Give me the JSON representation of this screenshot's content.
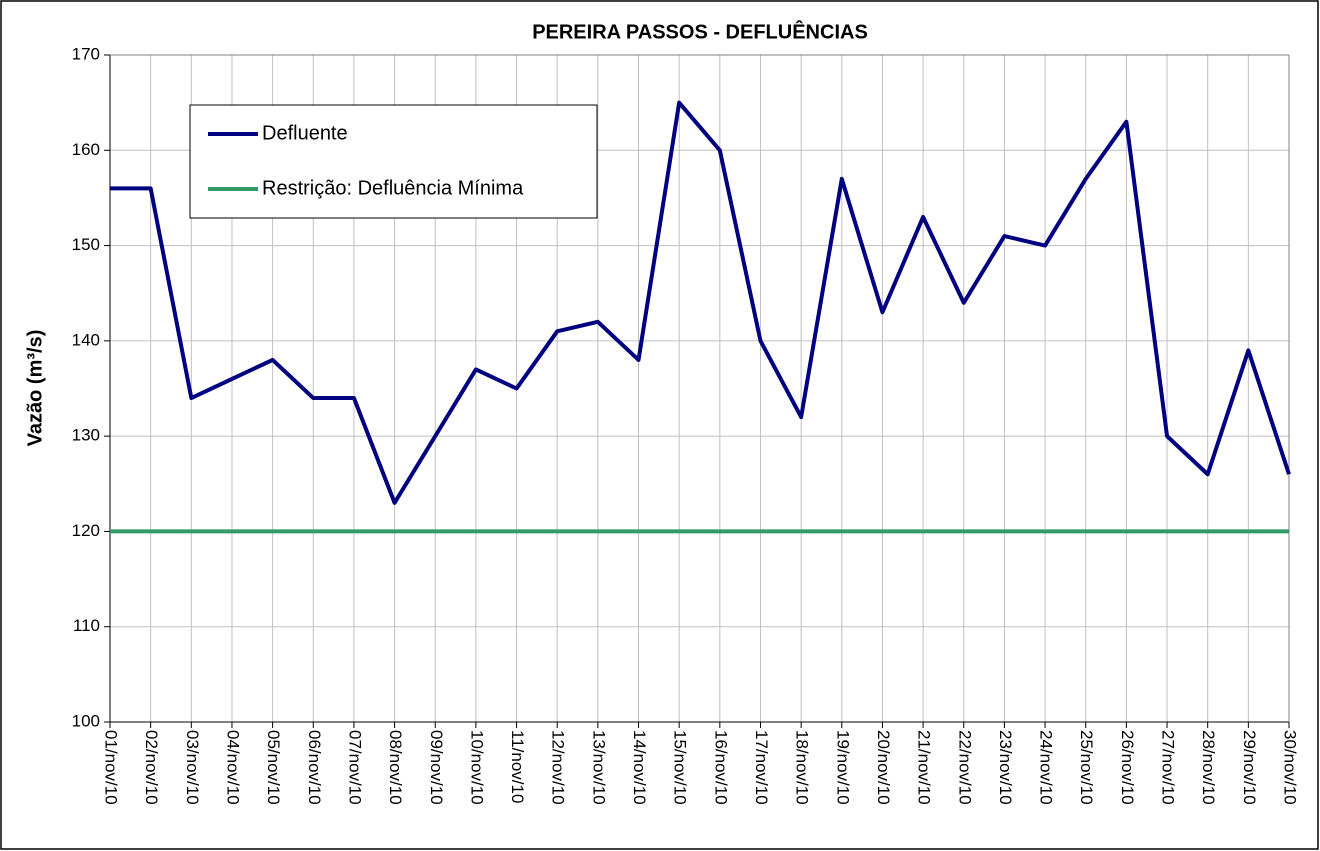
{
  "chart_data": {
    "type": "line",
    "title": "PEREIRA PASSOS - DEFLUÊNCIAS",
    "y_label": "Vazão (m³/s)",
    "categories": [
      "01/nov/10",
      "02/nov/10",
      "03/nov/10",
      "04/nov/10",
      "05/nov/10",
      "06/nov/10",
      "07/nov/10",
      "08/nov/10",
      "09/nov/10",
      "10/nov/10",
      "11/nov/10",
      "12/nov/10",
      "13/nov/10",
      "14/nov/10",
      "15/nov/10",
      "16/nov/10",
      "17/nov/10",
      "18/nov/10",
      "19/nov/10",
      "20/nov/10",
      "21/nov/10",
      "22/nov/10",
      "23/nov/10",
      "24/nov/10",
      "25/nov/10",
      "26/nov/10",
      "27/nov/10",
      "28/nov/10",
      "29/nov/10",
      "30/nov/10"
    ],
    "series": [
      {
        "name": "Defluente",
        "color": "#000080",
        "values": [
          156,
          156,
          134,
          136,
          138,
          134,
          134,
          123,
          130,
          137,
          135,
          141,
          142,
          138,
          165,
          160,
          140,
          132,
          157,
          143,
          153,
          144,
          151,
          150,
          157,
          163,
          130,
          126,
          139,
          126
        ]
      },
      {
        "name": "Restrição: Defluência Mínima",
        "color": "#339966",
        "values": [
          120,
          120,
          120,
          120,
          120,
          120,
          120,
          120,
          120,
          120,
          120,
          120,
          120,
          120,
          120,
          120,
          120,
          120,
          120,
          120,
          120,
          120,
          120,
          120,
          120,
          120,
          120,
          120,
          120,
          120
        ]
      }
    ],
    "ylim": [
      100,
      170
    ],
    "yticks": [
      100,
      110,
      120,
      130,
      140,
      150,
      160,
      170
    ],
    "grid": true,
    "legend": "upper left"
  }
}
